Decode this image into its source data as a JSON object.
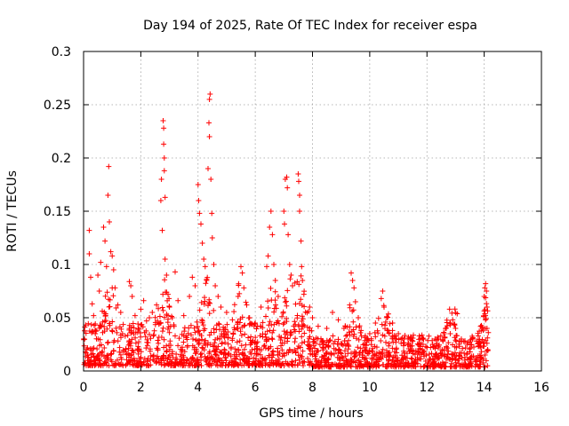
{
  "chart_data": {
    "type": "scatter",
    "title": "Day 194 of 2025, Rate Of TEC Index for receiver espa",
    "xlabel": "GPS time / hours",
    "ylabel": "ROTI / TECUs",
    "xlim": [
      0,
      16
    ],
    "ylim": [
      0,
      0.3
    ],
    "x_ticks": [
      0,
      2,
      4,
      6,
      8,
      10,
      12,
      14,
      16
    ],
    "x_tick_labels": [
      "0",
      "2",
      "4",
      "6",
      "8",
      "10",
      "12",
      "14",
      "16"
    ],
    "y_ticks": [
      0,
      0.05,
      0.1,
      0.15,
      0.2,
      0.25,
      0.3
    ],
    "y_tick_labels": [
      "0",
      "0.05",
      "0.1",
      "0.15",
      "0.2",
      "0.25",
      "0.3"
    ],
    "grid": true,
    "marker": "+",
    "marker_color": "#ff0000",
    "series": [
      {
        "name": "ROTI",
        "points": [
          [
            0.2,
            0.132
          ],
          [
            0.2,
            0.11
          ],
          [
            0.25,
            0.088
          ],
          [
            0.3,
            0.063
          ],
          [
            0.35,
            0.052
          ],
          [
            0.5,
            0.09
          ],
          [
            0.55,
            0.075
          ],
          [
            0.6,
            0.102
          ],
          [
            0.7,
            0.135
          ],
          [
            0.75,
            0.122
          ],
          [
            0.8,
            0.098
          ],
          [
            0.85,
            0.165
          ],
          [
            0.88,
            0.192
          ],
          [
            0.9,
            0.14
          ],
          [
            0.95,
            0.112
          ],
          [
            1.0,
            0.108
          ],
          [
            1.05,
            0.095
          ],
          [
            1.1,
            0.078
          ],
          [
            1.2,
            0.062
          ],
          [
            1.3,
            0.055
          ],
          [
            1.6,
            0.084
          ],
          [
            1.65,
            0.08
          ],
          [
            1.7,
            0.07
          ],
          [
            1.8,
            0.052
          ],
          [
            2.0,
            0.058
          ],
          [
            2.1,
            0.066
          ],
          [
            2.2,
            0.047
          ],
          [
            2.3,
            0.05
          ],
          [
            2.4,
            0.055
          ],
          [
            2.55,
            0.062
          ],
          [
            2.7,
            0.16
          ],
          [
            2.72,
            0.18
          ],
          [
            2.75,
            0.132
          ],
          [
            2.78,
            0.235
          ],
          [
            2.8,
            0.228
          ],
          [
            2.8,
            0.213
          ],
          [
            2.82,
            0.2
          ],
          [
            2.82,
            0.188
          ],
          [
            2.85,
            0.163
          ],
          [
            2.85,
            0.105
          ],
          [
            2.9,
            0.09
          ],
          [
            2.95,
            0.072
          ],
          [
            3.0,
            0.06
          ],
          [
            3.1,
            0.05
          ],
          [
            3.2,
            0.093
          ],
          [
            3.3,
            0.066
          ],
          [
            3.5,
            0.052
          ],
          [
            3.7,
            0.07
          ],
          [
            3.8,
            0.088
          ],
          [
            3.9,
            0.08
          ],
          [
            4.0,
            0.175
          ],
          [
            4.02,
            0.16
          ],
          [
            4.05,
            0.148
          ],
          [
            4.1,
            0.138
          ],
          [
            4.15,
            0.12
          ],
          [
            4.2,
            0.105
          ],
          [
            4.25,
            0.098
          ],
          [
            4.3,
            0.085
          ],
          [
            4.35,
            0.19
          ],
          [
            4.38,
            0.233
          ],
          [
            4.4,
            0.255
          ],
          [
            4.42,
            0.26
          ],
          [
            4.4,
            0.22
          ],
          [
            4.45,
            0.18
          ],
          [
            4.48,
            0.148
          ],
          [
            4.5,
            0.125
          ],
          [
            4.55,
            0.1
          ],
          [
            4.6,
            0.08
          ],
          [
            4.7,
            0.07
          ],
          [
            4.8,
            0.06
          ],
          [
            5.0,
            0.055
          ],
          [
            5.2,
            0.048
          ],
          [
            5.4,
            0.07
          ],
          [
            5.5,
            0.098
          ],
          [
            5.55,
            0.092
          ],
          [
            5.6,
            0.078
          ],
          [
            5.7,
            0.062
          ],
          [
            5.8,
            0.05
          ],
          [
            6.0,
            0.045
          ],
          [
            6.2,
            0.06
          ],
          [
            6.4,
            0.098
          ],
          [
            6.45,
            0.108
          ],
          [
            6.5,
            0.135
          ],
          [
            6.55,
            0.15
          ],
          [
            6.6,
            0.128
          ],
          [
            6.65,
            0.1
          ],
          [
            6.7,
            0.085
          ],
          [
            6.8,
            0.07
          ],
          [
            7.0,
            0.15
          ],
          [
            7.02,
            0.138
          ],
          [
            7.05,
            0.18
          ],
          [
            7.1,
            0.182
          ],
          [
            7.12,
            0.172
          ],
          [
            7.15,
            0.128
          ],
          [
            7.2,
            0.1
          ],
          [
            7.25,
            0.09
          ],
          [
            7.3,
            0.08
          ],
          [
            7.5,
            0.185
          ],
          [
            7.52,
            0.178
          ],
          [
            7.55,
            0.165
          ],
          [
            7.55,
            0.15
          ],
          [
            7.6,
            0.122
          ],
          [
            7.62,
            0.098
          ],
          [
            7.65,
            0.085
          ],
          [
            7.7,
            0.072
          ],
          [
            7.9,
            0.06
          ],
          [
            8.0,
            0.05
          ],
          [
            8.2,
            0.042
          ],
          [
            8.5,
            0.04
          ],
          [
            8.7,
            0.055
          ],
          [
            8.9,
            0.048
          ],
          [
            9.1,
            0.04
          ],
          [
            9.3,
            0.062
          ],
          [
            9.35,
            0.092
          ],
          [
            9.4,
            0.085
          ],
          [
            9.45,
            0.078
          ],
          [
            9.5,
            0.065
          ],
          [
            9.6,
            0.05
          ],
          [
            9.7,
            0.038
          ],
          [
            9.9,
            0.03
          ],
          [
            10.0,
            0.035
          ],
          [
            10.2,
            0.045
          ],
          [
            10.4,
            0.068
          ],
          [
            10.45,
            0.075
          ],
          [
            10.5,
            0.06
          ],
          [
            10.6,
            0.05
          ],
          [
            10.8,
            0.045
          ],
          [
            11.0,
            0.035
          ],
          [
            11.2,
            0.03
          ],
          [
            11.5,
            0.028
          ],
          [
            11.8,
            0.025
          ],
          [
            12.0,
            0.022
          ],
          [
            12.2,
            0.025
          ],
          [
            12.4,
            0.03
          ],
          [
            12.6,
            0.035
          ],
          [
            12.8,
            0.045
          ],
          [
            12.9,
            0.048
          ],
          [
            13.0,
            0.04
          ],
          [
            13.2,
            0.03
          ],
          [
            13.4,
            0.025
          ],
          [
            13.6,
            0.03
          ],
          [
            13.8,
            0.028
          ],
          [
            14.0,
            0.07
          ],
          [
            14.02,
            0.078
          ],
          [
            14.05,
            0.082
          ],
          [
            14.08,
            0.075
          ],
          [
            14.1,
            0.06
          ],
          [
            14.1,
            0.04
          ],
          [
            14.12,
            0.02
          ]
        ],
        "dense_band": {
          "x_range": [
            0.0,
            14.15
          ],
          "typical_range": [
            0.005,
            0.045
          ],
          "count": 1800
        }
      }
    ]
  }
}
